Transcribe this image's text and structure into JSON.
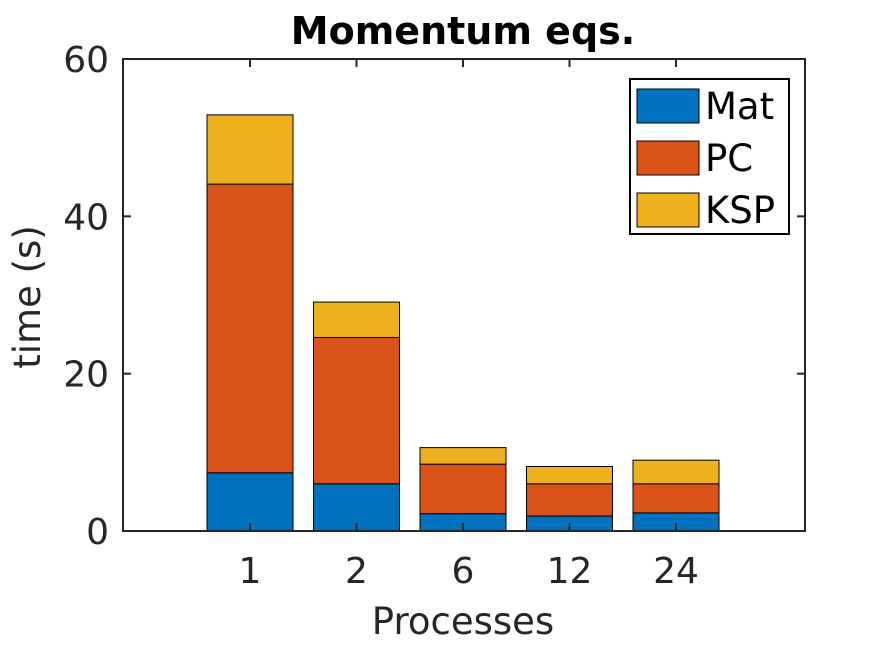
{
  "chart_data": {
    "type": "bar",
    "stacked": true,
    "title": "Momentum eqs.",
    "xlabel": "Processes",
    "ylabel": "time (s)",
    "categories": [
      "1",
      "2",
      "6",
      "12",
      "24"
    ],
    "ylim": [
      0,
      60
    ],
    "yticks": [
      "0",
      "20",
      "40",
      "60"
    ],
    "series": [
      {
        "name": "Mat",
        "color": "#0072BD",
        "values": [
          7.4,
          6.0,
          2.2,
          1.9,
          2.3
        ]
      },
      {
        "name": "PC",
        "color": "#D95319",
        "values": [
          36.7,
          18.6,
          6.3,
          4.1,
          3.7
        ]
      },
      {
        "name": "KSP",
        "color": "#EDB120",
        "values": [
          8.8,
          4.5,
          2.1,
          2.2,
          3.0
        ]
      }
    ],
    "legend_position": "top-right",
    "grid": false
  }
}
